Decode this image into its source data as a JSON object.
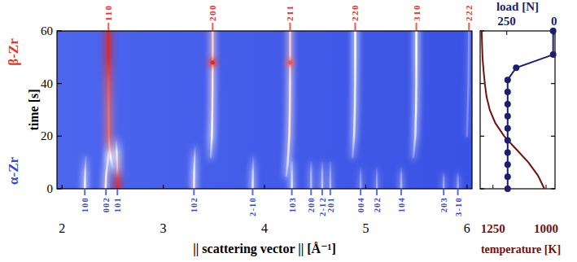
{
  "chart_data": [
    {
      "type": "heatmap",
      "x_label": "|| scattering vector || [Å⁻¹]",
      "y_label": "time [s]",
      "xlim": [
        1.95,
        6.05
      ],
      "xticks": [
        2,
        3,
        4,
        5,
        6
      ],
      "ylim": [
        0,
        60
      ],
      "yticks": [
        0,
        20,
        40,
        60
      ],
      "intensity_range": [
        0,
        1
      ],
      "top_phase": {
        "label": "β-Zr",
        "color": "#e8322c",
        "reflections": [
          {
            "hkl": "110",
            "q": 2.459,
            "trace": {
              "t": [
                8,
                12,
                16,
                20,
                30,
                40,
                50,
                60
              ],
              "q": [
                2.5,
                2.48,
                2.468,
                2.462,
                2.46,
                2.459,
                2.458,
                2.458
              ],
              "intensity": [
                0.3,
                0.55,
                0.75,
                0.85,
                0.85,
                0.9,
                1,
                1
              ]
            }
          },
          {
            "hkl": "200",
            "q": 3.488,
            "trace": {
              "t": [
                12,
                20,
                30,
                40,
                50,
                60
              ],
              "q": [
                3.47,
                3.48,
                3.485,
                3.487,
                3.488,
                3.488
              ],
              "intensity": [
                0.25,
                0.55,
                0.6,
                0.6,
                0.65,
                0.65
              ]
            }
          },
          {
            "hkl": "211",
            "q": 4.253,
            "trace": {
              "t": [
                5,
                10,
                20,
                30,
                40,
                50,
                60
              ],
              "q": [
                4.215,
                4.23,
                4.245,
                4.25,
                4.252,
                4.253,
                4.253
              ],
              "intensity": [
                0.3,
                0.45,
                0.6,
                0.6,
                0.6,
                0.65,
                0.65
              ]
            }
          },
          {
            "hkl": "220",
            "q": 4.896,
            "trace": {
              "t": [
                12,
                20,
                30,
                40,
                50,
                60
              ],
              "q": [
                4.87,
                4.885,
                4.892,
                4.895,
                4.896,
                4.896
              ],
              "intensity": [
                0.2,
                0.45,
                0.5,
                0.5,
                0.55,
                0.55
              ]
            }
          },
          {
            "hkl": "310",
            "q": 5.5,
            "trace": {
              "t": [
                12,
                20,
                30,
                40,
                50,
                60
              ],
              "q": [
                5.47,
                5.49,
                5.497,
                5.5,
                5.5,
                5.5
              ],
              "intensity": [
                0.2,
                0.45,
                0.5,
                0.5,
                0.55,
                0.55
              ]
            }
          },
          {
            "hkl": "222",
            "q": 6.02,
            "trace": {
              "t": [
                20,
                40,
                60
              ],
              "q": [
                6.0,
                6.015,
                6.02
              ],
              "intensity": [
                0.15,
                0.2,
                0.2
              ]
            }
          }
        ]
      },
      "bottom_phase": {
        "label": "α-Zr",
        "color": "#3347d9",
        "reflections": [
          {
            "hkl": "100",
            "q": 2.225,
            "trace": {
              "t": [
                0,
                6,
                12
              ],
              "q": [
                2.225,
                2.228,
                2.235
              ],
              "intensity": [
                0.55,
                0.45,
                0.15
              ]
            }
          },
          {
            "hkl": "002",
            "q": 2.434,
            "trace": {
              "t": [
                0,
                5,
                10,
                14
              ],
              "q": [
                2.43,
                2.435,
                2.45,
                2.46
              ],
              "intensity": [
                0.6,
                0.6,
                0.5,
                0.3
              ]
            }
          },
          {
            "hkl": "101",
            "q": 2.547,
            "trace": {
              "t": [
                0,
                4,
                8,
                14,
                18
              ],
              "q": [
                2.547,
                2.547,
                2.545,
                2.54,
                2.535
              ],
              "intensity": [
                1,
                0.95,
                0.7,
                0.5,
                0.2
              ]
            }
          },
          {
            "hkl": "102",
            "q": 3.303,
            "trace": {
              "t": [
                0,
                6,
                12,
                16
              ],
              "q": [
                3.303,
                3.305,
                3.31,
                3.315
              ],
              "intensity": [
                0.6,
                0.5,
                0.35,
                0.1
              ]
            }
          },
          {
            "hkl": "2-10",
            "q": 3.883,
            "trace": {
              "t": [
                0,
                6,
                12
              ],
              "q": [
                3.883,
                3.885,
                3.89
              ],
              "intensity": [
                0.5,
                0.4,
                0.1
              ]
            }
          },
          {
            "hkl": "103",
            "q": 4.27,
            "trace": {
              "t": [
                0,
                6,
                10
              ],
              "q": [
                4.27,
                4.27,
                4.27
              ],
              "intensity": [
                0.5,
                0.4,
                0.2
              ]
            }
          },
          {
            "hkl": "200",
            "q": 4.46,
            "trace": {
              "t": [
                0,
                6,
                10
              ],
              "q": [
                4.46,
                4.46,
                4.46
              ],
              "intensity": [
                0.35,
                0.3,
                0.1
              ]
            }
          },
          {
            "hkl": "2-12",
            "q": 4.57,
            "trace": {
              "t": [
                0,
                6,
                10
              ],
              "q": [
                4.57,
                4.57,
                4.57
              ],
              "intensity": [
                0.4,
                0.3,
                0.1
              ]
            }
          },
          {
            "hkl": "201",
            "q": 4.65,
            "trace": {
              "t": [
                0,
                6,
                10
              ],
              "q": [
                4.65,
                4.65,
                4.65
              ],
              "intensity": [
                0.35,
                0.25,
                0.1
              ]
            }
          },
          {
            "hkl": "004",
            "q": 4.95,
            "trace": {
              "t": [
                0,
                5,
                8
              ],
              "q": [
                4.95,
                4.95,
                4.95
              ],
              "intensity": [
                0.3,
                0.2,
                0.05
              ]
            }
          },
          {
            "hkl": "202",
            "q": 5.11,
            "trace": {
              "t": [
                0,
                5,
                8
              ],
              "q": [
                5.11,
                5.11,
                5.11
              ],
              "intensity": [
                0.3,
                0.2,
                0.05
              ]
            }
          },
          {
            "hkl": "104",
            "q": 5.35,
            "trace": {
              "t": [
                0,
                5,
                8
              ],
              "q": [
                5.35,
                5.35,
                5.35
              ],
              "intensity": [
                0.35,
                0.25,
                0.05
              ]
            }
          },
          {
            "hkl": "203",
            "q": 5.77,
            "trace": {
              "t": [
                0,
                4,
                6
              ],
              "q": [
                5.77,
                5.77,
                5.77
              ],
              "intensity": [
                0.3,
                0.2,
                0.05
              ]
            }
          },
          {
            "hkl": "3-10",
            "q": 5.91,
            "trace": {
              "t": [
                0,
                4,
                6
              ],
              "q": [
                5.91,
                5.91,
                5.91
              ],
              "intensity": [
                0.3,
                0.2,
                0.05
              ]
            }
          }
        ]
      },
      "spots": [
        {
          "q": 3.488,
          "t": 48,
          "intensity": 1
        },
        {
          "q": 4.253,
          "t": 48,
          "intensity": 0.9
        }
      ]
    },
    {
      "type": "line",
      "ylim": [
        0,
        60
      ],
      "yticks": [
        0,
        20,
        40,
        60
      ],
      "tick_labels": "x",
      "x_label": "temperature [K]",
      "xlim": [
        1310,
        958
      ],
      "xticks": [
        1250,
        1000
      ],
      "x2_label": "load [N]",
      "x2lim": [
        390,
        -5
      ],
      "x2ticks": [
        250,
        0
      ],
      "series": [
        {
          "axis": "x",
          "color": "#6e1212",
          "marker": "none",
          "y": [
            0,
            5,
            10,
            15,
            20,
            25,
            30,
            35,
            40,
            45,
            50,
            55,
            60
          ],
          "x": [
            1008,
            1038,
            1083,
            1140,
            1197,
            1239,
            1265,
            1280,
            1288,
            1294,
            1299,
            1301,
            1303
          ]
        },
        {
          "axis": "x2",
          "color": "#1b1f6e",
          "marker": "circle",
          "y": [
            0,
            4.6,
            9.2,
            13.8,
            18.4,
            23,
            27.6,
            32.2,
            36.8,
            41.4,
            46,
            51,
            60
          ],
          "x": [
            245,
            245,
            245,
            245,
            245,
            245,
            245,
            245,
            245,
            245,
            200,
            5,
            5
          ]
        }
      ]
    }
  ]
}
